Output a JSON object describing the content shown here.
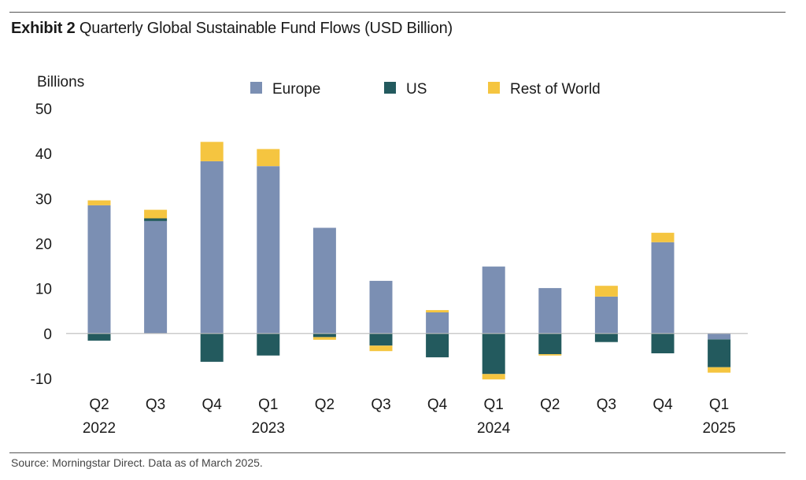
{
  "exhibit_label": "Exhibit 2",
  "title": "Quarterly Global Sustainable Fund Flows (USD Billion)",
  "source": "Source: Morningstar Direct. Data as of March 2025.",
  "colors": {
    "Europe": "#7b8fb3",
    "US": "#235a5e",
    "Rest of World": "#f5c540",
    "axis": "#bbbbbb",
    "text": "#1a1a1a"
  },
  "chart_data": {
    "type": "bar",
    "stacked": true,
    "ylabel": "Billions",
    "ylim": [
      -10,
      50
    ],
    "yticks": [
      50,
      40,
      30,
      20,
      10,
      0,
      -10
    ],
    "grid": false,
    "legend_position": "top",
    "categories": [
      "Q2 2022",
      "Q3 2022",
      "Q4 2022",
      "Q1 2023",
      "Q2 2023",
      "Q3 2023",
      "Q4 2023",
      "Q1 2024",
      "Q2 2024",
      "Q3 2024",
      "Q4 2024",
      "Q1 2025"
    ],
    "tick_labels": [
      {
        "quarter": "Q2",
        "year": "2022"
      },
      {
        "quarter": "Q3",
        "year": ""
      },
      {
        "quarter": "Q4",
        "year": ""
      },
      {
        "quarter": "Q1",
        "year": "2023"
      },
      {
        "quarter": "Q2",
        "year": ""
      },
      {
        "quarter": "Q3",
        "year": ""
      },
      {
        "quarter": "Q4",
        "year": ""
      },
      {
        "quarter": "Q1",
        "year": "2024"
      },
      {
        "quarter": "Q2",
        "year": ""
      },
      {
        "quarter": "Q3",
        "year": ""
      },
      {
        "quarter": "Q4",
        "year": ""
      },
      {
        "quarter": "Q1",
        "year": "2025"
      }
    ],
    "series": [
      {
        "name": "Europe",
        "values": [
          28.5,
          25.0,
          38.3,
          37.2,
          23.5,
          11.7,
          4.7,
          14.9,
          10.1,
          8.2,
          20.3,
          -1.3
        ]
      },
      {
        "name": "US",
        "values": [
          -1.6,
          0.6,
          -6.3,
          -4.9,
          -0.8,
          -2.7,
          -5.3,
          -9.0,
          -4.6,
          -1.9,
          -4.4,
          -6.2
        ]
      },
      {
        "name": "Rest of World",
        "values": [
          1.1,
          1.9,
          4.3,
          3.8,
          -0.6,
          -1.2,
          0.5,
          -1.2,
          -0.3,
          2.4,
          2.1,
          -1.2
        ]
      }
    ]
  }
}
